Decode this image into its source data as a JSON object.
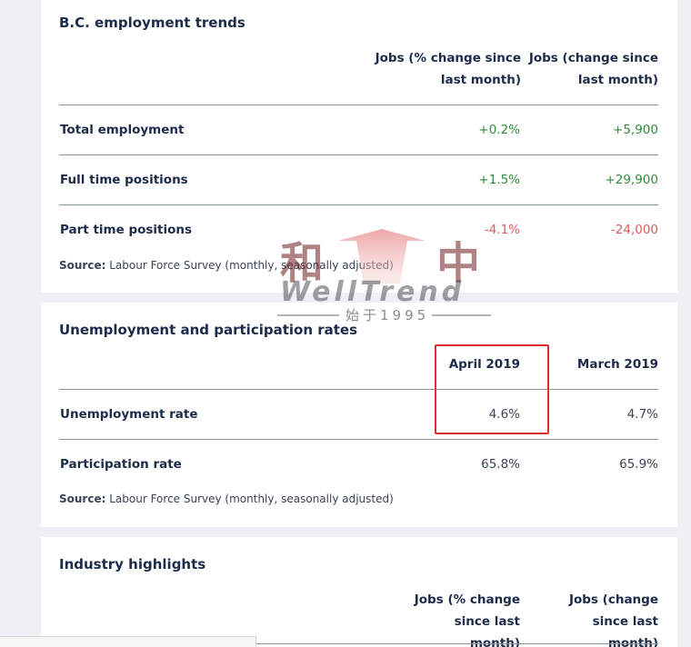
{
  "employment": {
    "title": "B.C. employment trends",
    "col1_header": "Jobs (% change since last month)",
    "col2_header": "Jobs (change since last month)",
    "rows": [
      {
        "label": "Total employment",
        "pct": "+0.2%",
        "abs": "+5,900",
        "trend": "positive"
      },
      {
        "label": "Full time positions",
        "pct": "+1.5%",
        "abs": "+29,900",
        "trend": "positive"
      },
      {
        "label": "Part time positions",
        "pct": "-4.1%",
        "abs": "-24,000",
        "trend": "negative"
      }
    ],
    "source_label": "Source:",
    "source_text": "Labour Force Survey (monthly, seasonally adjusted)"
  },
  "unemployment": {
    "title": "Unemployment and participation rates",
    "col1_header": "April 2019",
    "col2_header": "March 2019",
    "rows": [
      {
        "label": "Unemployment rate",
        "april": "4.6%",
        "march": "4.7%"
      },
      {
        "label": "Participation rate",
        "april": "65.8%",
        "march": "65.9%"
      }
    ],
    "source_label": "Source:",
    "source_text": "Labour Force Survey (monthly, seasonally adjusted)"
  },
  "industry": {
    "title": "Industry highlights",
    "col1_header": "Jobs (% change since last month)",
    "col2_header": "Jobs (change since last month)"
  },
  "watermark": {
    "char_left": "和",
    "char_right": "中",
    "brand": "WellTrend",
    "since": "始于1995"
  },
  "colors": {
    "positive": "#2f8a3c",
    "negative": "#e05a5a",
    "highlight_border": "#d9312b",
    "heading": "#1c2b4a"
  }
}
